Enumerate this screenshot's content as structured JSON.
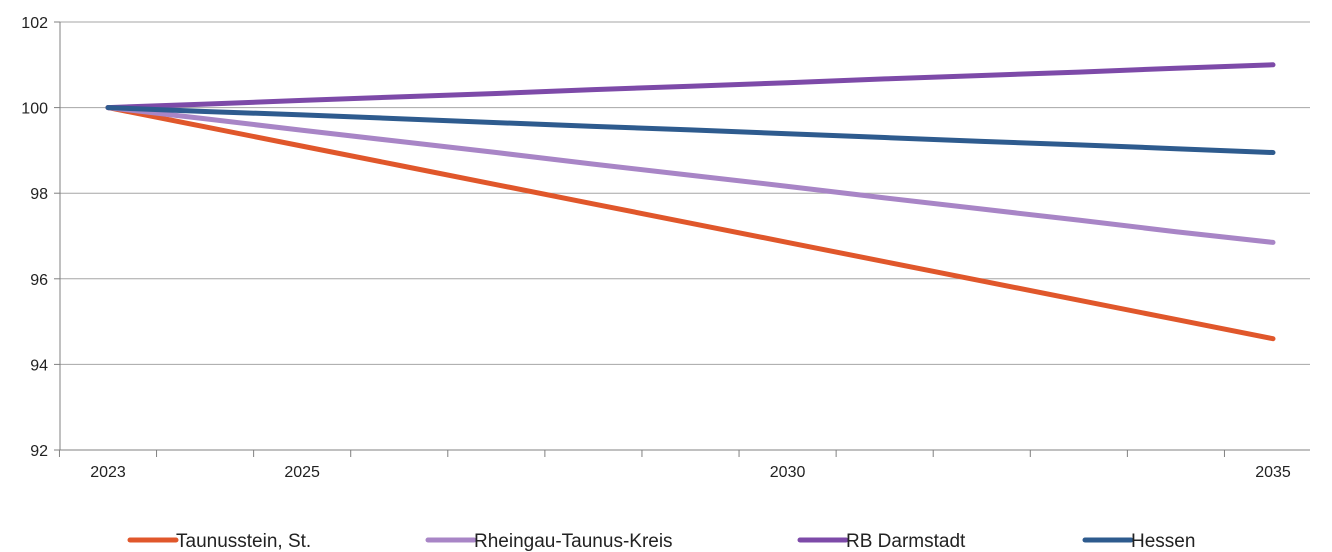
{
  "chart_data": {
    "type": "line",
    "title": "",
    "xlabel": "",
    "ylabel": "",
    "x": [
      2023,
      2024,
      2025,
      2026,
      2027,
      2028,
      2029,
      2030,
      2031,
      2032,
      2033,
      2034,
      2035
    ],
    "x_tick_labels": [
      "2023",
      "2025",
      "2030",
      "2035"
    ],
    "x_tick_label_positions": [
      2023,
      2025,
      2030,
      2035
    ],
    "ylim": [
      92,
      102
    ],
    "y_ticks": [
      92,
      94,
      96,
      98,
      100,
      102
    ],
    "y_tick_labels": [
      "92",
      "94",
      "96",
      "98",
      "100",
      "102"
    ],
    "grid": "horizontal",
    "legend_position": "bottom",
    "series": [
      {
        "name": "Taunusstein, St.",
        "color": "#e0572b",
        "values": [
          100,
          99.55,
          99.1,
          98.65,
          98.2,
          97.75,
          97.3,
          96.85,
          96.4,
          95.95,
          95.5,
          95.05,
          94.6
        ]
      },
      {
        "name": "Rheingau-Taunus-Kreis",
        "color": "#a885c6",
        "values": [
          100,
          99.74,
          99.47,
          99.21,
          98.95,
          98.68,
          98.42,
          98.16,
          97.89,
          97.63,
          97.37,
          97.1,
          96.85
        ]
      },
      {
        "name": "RB Darmstadt",
        "color": "#7d4aa8",
        "values": [
          100,
          100.08,
          100.17,
          100.25,
          100.33,
          100.42,
          100.5,
          100.58,
          100.67,
          100.75,
          100.83,
          100.92,
          101.0
        ]
      },
      {
        "name": "Hessen",
        "color": "#2e5b8e",
        "values": [
          100,
          99.91,
          99.83,
          99.74,
          99.65,
          99.56,
          99.48,
          99.39,
          99.3,
          99.21,
          99.13,
          99.04,
          98.95
        ]
      }
    ]
  }
}
